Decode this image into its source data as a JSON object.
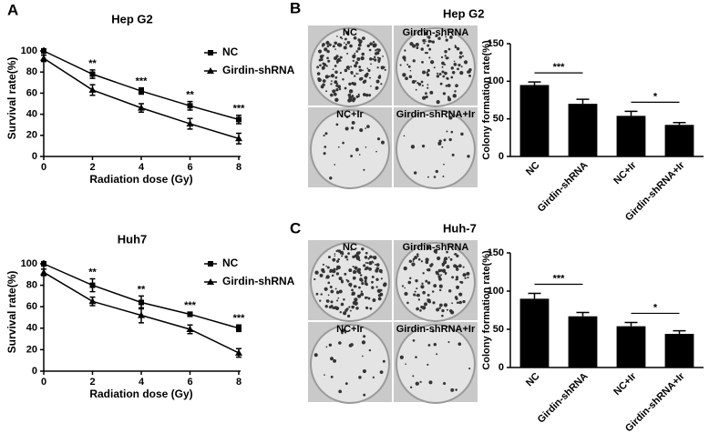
{
  "panel_labels": [
    "A",
    "B",
    "C"
  ],
  "plates": [
    {
      "title": "Hep G2",
      "labels": [
        "NC",
        "Girdin-shRNA",
        "NC+Ir",
        "Girdin-shRNA+Ir"
      ]
    },
    {
      "title": "Huh-7",
      "labels": [
        "NC",
        "Girdin-shRNA",
        "NC+Ir",
        "Girdin-shRNA+Ir"
      ]
    }
  ],
  "chart_data": [
    {
      "type": "line",
      "title": "Hep G2",
      "x_label": "Radiation dose (Gy)",
      "y_label": "Survival rate(%)",
      "x": [
        0,
        2,
        4,
        6,
        8
      ],
      "xlim": [
        0,
        8
      ],
      "xticks": [
        0,
        2,
        4,
        6,
        8
      ],
      "ylim": [
        0,
        100
      ],
      "yticks": [
        0,
        20,
        40,
        60,
        80,
        100
      ],
      "series": [
        {
          "name": "NC",
          "color": "#000000",
          "marker": "square",
          "values": [
            100,
            78,
            62,
            48,
            35
          ],
          "errors": [
            2,
            4,
            3,
            4,
            4
          ]
        },
        {
          "name": "Girdin-shRNA",
          "color": "#000000",
          "marker": "triangle",
          "values": [
            93,
            63,
            46,
            31,
            17
          ],
          "errors": [
            3,
            5,
            4,
            5,
            5
          ]
        }
      ],
      "annotations": [
        null,
        "**",
        "***",
        "**",
        "***"
      ]
    },
    {
      "type": "line",
      "title": "Huh7",
      "x_label": "Radiation dose (Gy)",
      "y_label": "Survival rate(%)",
      "x": [
        0,
        2,
        4,
        6,
        8
      ],
      "xlim": [
        0,
        8
      ],
      "xticks": [
        0,
        2,
        4,
        6,
        8
      ],
      "ylim": [
        0,
        100
      ],
      "yticks": [
        0,
        20,
        40,
        60,
        80,
        100
      ],
      "series": [
        {
          "name": "NC",
          "color": "#000000",
          "marker": "square",
          "values": [
            100,
            80,
            64,
            53,
            40
          ],
          "errors": [
            2,
            6,
            6,
            2,
            3
          ]
        },
        {
          "name": "Girdin-shRNA",
          "color": "#000000",
          "marker": "triangle",
          "values": [
            92,
            65,
            52,
            39,
            17
          ],
          "errors": [
            3,
            4,
            7,
            4,
            4
          ]
        }
      ],
      "annotations": [
        null,
        "**",
        "**",
        "***",
        "***"
      ]
    },
    {
      "type": "bar",
      "y_label": "Colony formation rate(%)",
      "color": "#000000",
      "categories": [
        "NC",
        "Girdin-shRNA",
        "NC+Ir",
        "Girdin-shRNA+Ir"
      ],
      "values": [
        95,
        70,
        54,
        42
      ],
      "errors": [
        4,
        6,
        6,
        3
      ],
      "ylim": [
        0,
        150
      ],
      "yticks": [
        0,
        50,
        100,
        150
      ],
      "annotations": [
        "***",
        "*"
      ]
    },
    {
      "type": "bar",
      "y_label": "Colony formation rate(%)",
      "color": "#000000",
      "categories": [
        "NC",
        "Girdin-shRNA",
        "NC+Ir",
        "Girdin-shRNA+Ir"
      ],
      "values": [
        90,
        67,
        54,
        44
      ],
      "errors": [
        7,
        5,
        5,
        4
      ],
      "ylim": [
        0,
        150
      ],
      "yticks": [
        0,
        50,
        100,
        150
      ],
      "annotations": [
        "***",
        "*"
      ]
    }
  ]
}
